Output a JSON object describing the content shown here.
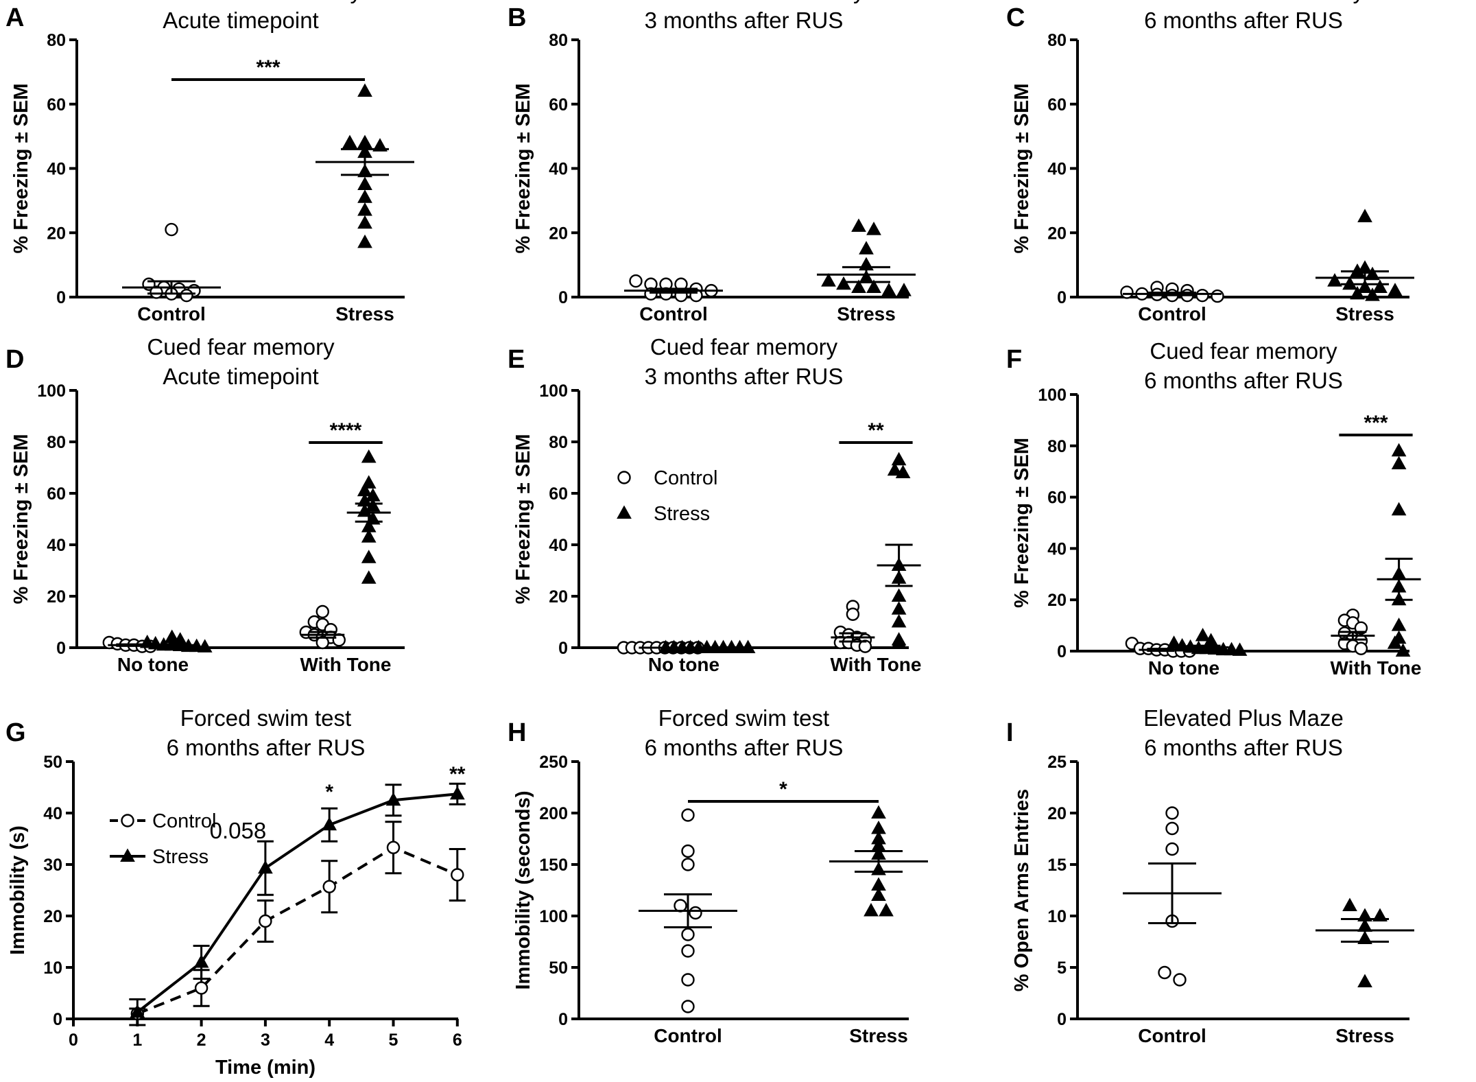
{
  "chart_data": [
    {
      "panel": "A",
      "type": "scatter",
      "title": [
        "Contextual fear memory",
        "Acute timepoint"
      ],
      "ylabel": "% Freezing ± SEM",
      "ylim": [
        0,
        80
      ],
      "yticks": [
        0,
        20,
        40,
        60,
        80
      ],
      "categories": [
        "Control",
        "Stress"
      ],
      "groups": [
        {
          "category": "Control",
          "marker": "circle",
          "values": [
            0.5,
            1,
            1.5,
            2,
            2.5,
            3,
            4,
            21
          ],
          "mean": 3,
          "sem": 1.9
        },
        {
          "category": "Stress",
          "marker": "triangle",
          "values": [
            17,
            23,
            27,
            31,
            35,
            39,
            45,
            47,
            48,
            48,
            64
          ],
          "mean": 42,
          "sem": 4
        }
      ],
      "significance": [
        {
          "from": "Control",
          "to": "Stress",
          "label": "***"
        }
      ]
    },
    {
      "panel": "B",
      "type": "scatter",
      "title": [
        "Contextual fear memory",
        "3 months after RUS"
      ],
      "ylabel": "% Freezing ± SEM",
      "ylim": [
        0,
        80
      ],
      "yticks": [
        0,
        20,
        40,
        60,
        80
      ],
      "categories": [
        "Control",
        "Stress"
      ],
      "groups": [
        {
          "category": "Control",
          "marker": "circle",
          "values": [
            0.5,
            0.5,
            1,
            1,
            2,
            2.5,
            4,
            4,
            4,
            5
          ],
          "mean": 2,
          "sem": 0.6
        },
        {
          "category": "Stress",
          "marker": "triangle",
          "values": [
            2,
            2,
            3,
            3,
            4,
            5,
            6,
            10,
            15,
            21,
            22
          ],
          "mean": 7,
          "sem": 2.3
        }
      ],
      "significance": []
    },
    {
      "panel": "C",
      "type": "scatter",
      "title": [
        "Contextual fear memory",
        "6 months after RUS"
      ],
      "ylabel": "% Freezing ± SEM",
      "ylim": [
        0,
        80
      ],
      "yticks": [
        0,
        20,
        40,
        60,
        80
      ],
      "categories": [
        "Control",
        "Stress"
      ],
      "groups": [
        {
          "category": "Control",
          "marker": "circle",
          "values": [
            0.3,
            0.5,
            0.5,
            0.5,
            0.8,
            1,
            1.5,
            2,
            2.5,
            3
          ],
          "mean": 1,
          "sem": 0.4
        },
        {
          "category": "Stress",
          "marker": "triangle",
          "values": [
            0.5,
            1,
            2,
            3,
            3,
            4,
            5,
            7,
            8,
            9,
            25
          ],
          "mean": 6,
          "sem": 2
        }
      ],
      "significance": []
    },
    {
      "panel": "D",
      "type": "scatter",
      "title": [
        "Cued fear memory",
        "Acute timepoint"
      ],
      "ylabel": "% Freezing ± SEM",
      "ylim": [
        0,
        100
      ],
      "yticks": [
        0,
        20,
        40,
        60,
        80,
        100
      ],
      "categories": [
        "No tone",
        "With Tone"
      ],
      "groups": [
        {
          "category": "No tone",
          "marker": "circle",
          "offset": -0.12,
          "values": [
            0.5,
            0.5,
            1,
            1,
            1.5,
            2
          ],
          "mean": 1,
          "sem": 0.3
        },
        {
          "category": "No tone",
          "marker": "triangle",
          "offset": 0.12,
          "values": [
            0.3,
            0.5,
            0.5,
            0.8,
            1,
            1,
            1.5,
            2,
            3,
            4
          ],
          "mean": 1,
          "sem": 0.4
        },
        {
          "category": "With Tone",
          "marker": "circle",
          "offset": -0.12,
          "values": [
            2,
            3,
            4,
            4,
            5,
            6,
            7,
            9,
            10,
            14
          ],
          "mean": 5,
          "sem": 1.1
        },
        {
          "category": "With Tone",
          "marker": "triangle",
          "offset": 0.12,
          "values": [
            27,
            35,
            43,
            47,
            50,
            53,
            55,
            57,
            59,
            61,
            64,
            74
          ],
          "mean": 52.5,
          "sem": 3.5
        }
      ],
      "significance": [
        {
          "category": "With Tone",
          "label": "****"
        }
      ]
    },
    {
      "panel": "E",
      "type": "scatter",
      "title": [
        "Cued fear memory",
        "3 months after RUS"
      ],
      "ylabel": "% Freezing ± SEM",
      "ylim": [
        0,
        100
      ],
      "yticks": [
        0,
        20,
        40,
        60,
        80,
        100
      ],
      "categories": [
        "No tone",
        "With Tone"
      ],
      "legend": [
        {
          "marker": "circle",
          "label": "Control"
        },
        {
          "marker": "triangle",
          "label": "Stress"
        }
      ],
      "groups": [
        {
          "category": "No tone",
          "marker": "circle",
          "offset": -0.12,
          "values": [
            0,
            0,
            0,
            0,
            0,
            0,
            0,
            0,
            0,
            0
          ],
          "mean": 0,
          "sem": 0
        },
        {
          "category": "No tone",
          "marker": "triangle",
          "offset": 0.12,
          "values": [
            0,
            0,
            0,
            0,
            0,
            0,
            0,
            0,
            0,
            0,
            0
          ],
          "mean": 0,
          "sem": 0
        },
        {
          "category": "With Tone",
          "marker": "circle",
          "offset": -0.12,
          "values": [
            0.5,
            1,
            2,
            2,
            3,
            4,
            5,
            6,
            13,
            16
          ],
          "mean": 4,
          "sem": 1.6
        },
        {
          "category": "With Tone",
          "marker": "triangle",
          "offset": 0.12,
          "values": [
            2,
            3,
            10,
            15,
            20,
            27,
            32,
            68,
            69,
            73
          ],
          "mean": 32,
          "sem": 8
        }
      ],
      "significance": [
        {
          "category": "With Tone",
          "label": "**"
        }
      ]
    },
    {
      "panel": "F",
      "type": "scatter",
      "title": [
        "Cued fear memory",
        "6 months after RUS"
      ],
      "ylabel": "% Freezing ± SEM",
      "ylim": [
        0,
        100
      ],
      "yticks": [
        0,
        20,
        40,
        60,
        80,
        100
      ],
      "categories": [
        "No tone",
        "With Tone"
      ],
      "groups": [
        {
          "category": "No tone",
          "marker": "circle",
          "offset": -0.12,
          "values": [
            0,
            0,
            0,
            0.5,
            0.5,
            1,
            1,
            3
          ],
          "mean": 0.5,
          "sem": 0.4
        },
        {
          "category": "No tone",
          "marker": "triangle",
          "offset": 0.12,
          "values": [
            0.3,
            0.5,
            0.5,
            0.8,
            1,
            1,
            1.5,
            2,
            3,
            4,
            6
          ],
          "mean": 1.5,
          "sem": 0.6
        },
        {
          "category": "With Tone",
          "marker": "circle",
          "offset": -0.12,
          "values": [
            1,
            2,
            3,
            4,
            5,
            7,
            9,
            11,
            12,
            14
          ],
          "mean": 6,
          "sem": 1.5
        },
        {
          "category": "With Tone",
          "marker": "triangle",
          "offset": 0.12,
          "values": [
            0,
            3,
            5,
            10,
            20,
            25,
            30,
            55,
            73,
            78
          ],
          "mean": 28,
          "sem": 8
        }
      ],
      "significance": [
        {
          "category": "With Tone",
          "label": "***"
        }
      ]
    },
    {
      "panel": "G",
      "type": "line",
      "title": [
        "Forced swim test",
        "6 months after RUS"
      ],
      "xlabel": "Time (min)",
      "ylabel": "Immobility (s)",
      "xlim": [
        0,
        6
      ],
      "ylim": [
        0,
        50
      ],
      "xticks": [
        0,
        1,
        2,
        3,
        4,
        5,
        6
      ],
      "yticks": [
        0,
        10,
        20,
        30,
        40,
        50
      ],
      "x": [
        1,
        2,
        3,
        4,
        5,
        6
      ],
      "series": [
        {
          "name": "Control",
          "marker": "circle",
          "dashed": true,
          "values": [
            1,
            6,
            19,
            25.7,
            33.3,
            28
          ],
          "sem": [
            1,
            3.5,
            4,
            5,
            5,
            5
          ]
        },
        {
          "name": "Stress",
          "marker": "triangle",
          "dashed": false,
          "values": [
            1.3,
            11,
            29.3,
            37.7,
            42.5,
            43.7
          ],
          "sem": [
            2.5,
            3.2,
            5.2,
            3.2,
            3,
            2
          ]
        }
      ],
      "annotations": [
        {
          "x": 3,
          "text": "0.058"
        },
        {
          "x": 4,
          "text": "*"
        },
        {
          "x": 6,
          "text": "**"
        }
      ]
    },
    {
      "panel": "H",
      "type": "scatter",
      "title": [
        "Forced swim test",
        "6 months after RUS"
      ],
      "ylabel": "Immobility (seconds)",
      "ylim": [
        0,
        250
      ],
      "yticks": [
        0,
        50,
        100,
        150,
        200,
        250
      ],
      "categories": [
        "Control",
        "Stress"
      ],
      "groups": [
        {
          "category": "Control",
          "marker": "circle",
          "values": [
            12,
            38,
            66,
            82,
            103,
            110,
            150,
            163,
            198
          ],
          "mean": 105,
          "sem": 16
        },
        {
          "category": "Stress",
          "marker": "triangle",
          "values": [
            105,
            105,
            120,
            130,
            145,
            160,
            168,
            175,
            185,
            200
          ],
          "mean": 153,
          "sem": 10
        }
      ],
      "significance": [
        {
          "from": "Control",
          "to": "Stress",
          "label": "*"
        }
      ]
    },
    {
      "panel": "I",
      "type": "scatter",
      "title": [
        "Elevated Plus Maze",
        "6 months after RUS"
      ],
      "ylabel": "% Open Arms Entries",
      "ylim": [
        0,
        25
      ],
      "yticks": [
        0,
        5,
        10,
        15,
        20,
        25
      ],
      "categories": [
        "Control",
        "Stress"
      ],
      "groups": [
        {
          "category": "Control",
          "marker": "circle",
          "values": [
            3.8,
            4.5,
            9.5,
            16.5,
            18.5,
            20
          ],
          "mean": 12.2,
          "sem": 2.9
        },
        {
          "category": "Stress",
          "marker": "triangle",
          "values": [
            3.6,
            7.8,
            9,
            10,
            10,
            11
          ],
          "mean": 8.6,
          "sem": 1.1
        }
      ],
      "significance": []
    }
  ]
}
